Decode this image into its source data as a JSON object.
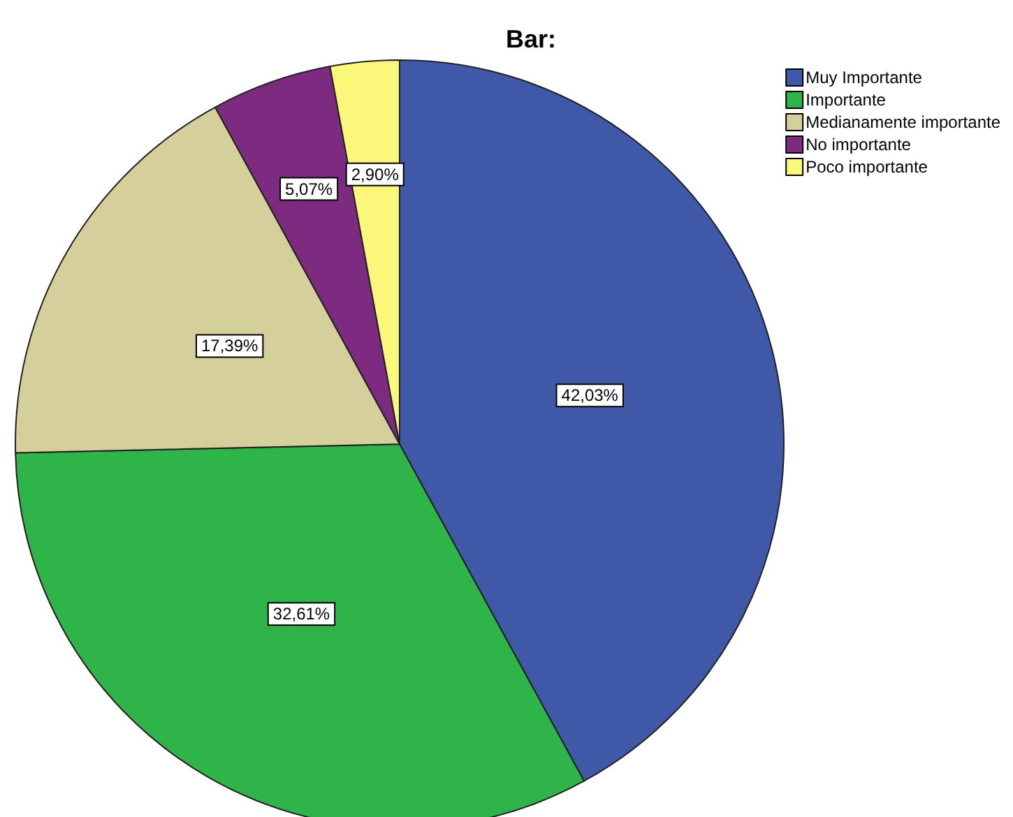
{
  "chart_data": {
    "type": "pie",
    "title": "Bar:",
    "categories": [
      "Muy Importante",
      "Importante",
      "Medianamente importante",
      "No importante",
      "Poco importante"
    ],
    "values": [
      42.03,
      32.61,
      17.39,
      5.07,
      2.9
    ],
    "colors": [
      "#3f58a8",
      "#2fb44a",
      "#d5cf9b",
      "#7c2b80",
      "#fbf77a"
    ],
    "value_labels": [
      "42,03%",
      "32,61%",
      "17,39%",
      "5,07%",
      "2,90%"
    ],
    "legend": "top right"
  }
}
